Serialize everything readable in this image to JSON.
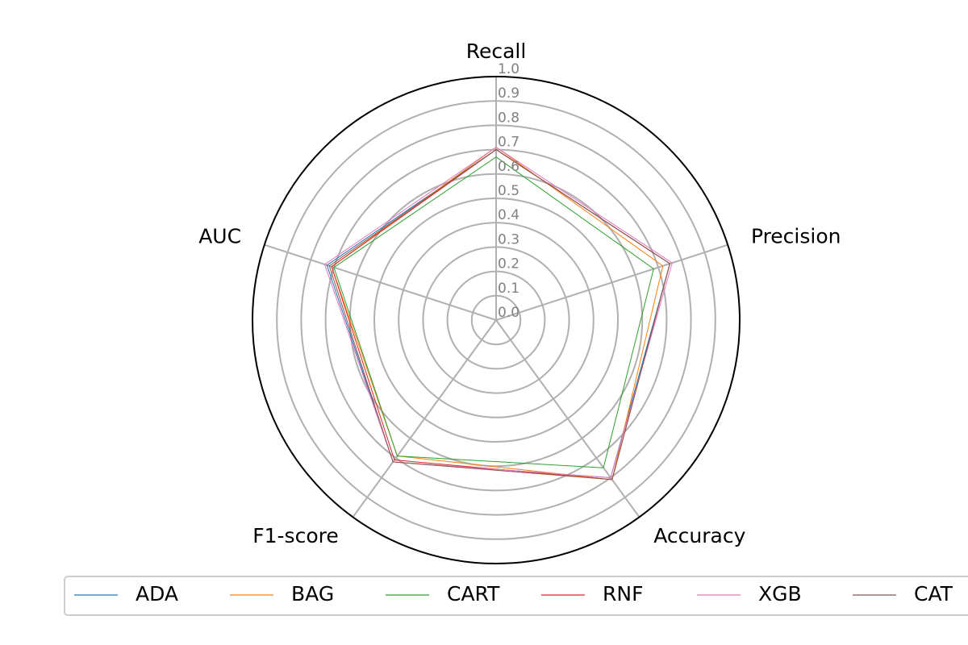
{
  "chart_data": {
    "type": "radar",
    "axes": [
      "Recall",
      "Precision",
      "Accuracy",
      "F1-score",
      "AUC"
    ],
    "radial_ticks": [
      "0.0",
      "0.1",
      "0.2",
      "0.3",
      "0.4",
      "0.5",
      "0.6",
      "0.7",
      "0.8",
      "0.9",
      "1.0"
    ],
    "rlim": [
      0,
      1.0
    ],
    "grid": true,
    "legend_position": "bottom",
    "series": [
      {
        "name": "ADA",
        "color": "#1f77b4",
        "values": [
          0.7,
          0.75,
          0.8,
          0.72,
          0.73
        ]
      },
      {
        "name": "BAG",
        "color": "#ff7f0e",
        "values": [
          0.71,
          0.72,
          0.81,
          0.69,
          0.71
        ]
      },
      {
        "name": "CART",
        "color": "#2ca02c",
        "values": [
          0.67,
          0.68,
          0.75,
          0.69,
          0.7
        ]
      },
      {
        "name": "RNF",
        "color": "#d62728",
        "values": [
          0.7,
          0.75,
          0.81,
          0.71,
          0.71
        ]
      },
      {
        "name": "XGB",
        "color": "#e377c2",
        "values": [
          0.71,
          0.76,
          0.8,
          0.72,
          0.74
        ]
      },
      {
        "name": "CAT",
        "color": "#8c564b",
        "values": [
          0.7,
          0.75,
          0.81,
          0.72,
          0.72
        ]
      }
    ]
  },
  "legend": {
    "items": [
      "ADA",
      "BAG",
      "CART",
      "RNF",
      "XGB",
      "CAT"
    ]
  }
}
